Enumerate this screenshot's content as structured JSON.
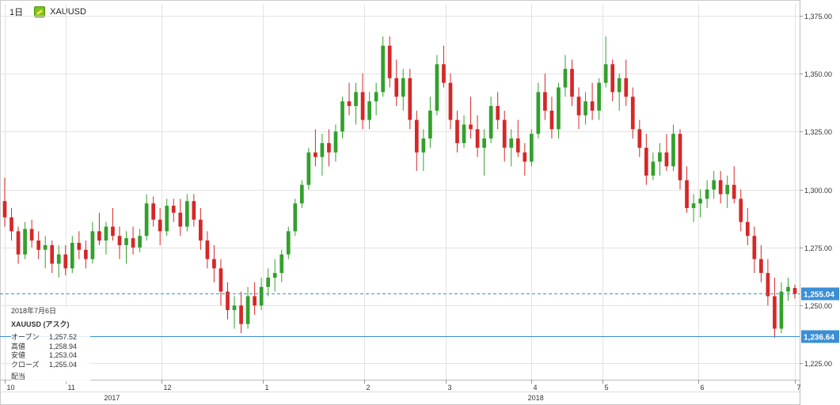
{
  "header": {
    "timeframe": "1日",
    "symbol": "XAUUSD"
  },
  "info_panel": {
    "date": "2018年7月6日",
    "title": "XAUUSD (アスク)",
    "rows": [
      {
        "label": "オープン",
        "value": "1,257.52"
      },
      {
        "label": "高値",
        "value": "1,258.94"
      },
      {
        "label": "安値",
        "value": "1,253.04"
      },
      {
        "label": "クローズ",
        "value": "1,255.04"
      }
    ],
    "footer": "配当"
  },
  "colors": {
    "up": "#33a02c",
    "down": "#d62728",
    "grid": "#e3e3e3",
    "line": "#3a8fd6",
    "badge": "#3a8fd6"
  },
  "chart_data": {
    "type": "candlestick",
    "yrange": [
      1218,
      1380
    ],
    "yticks": [
      "1,225.00",
      "1,250.00",
      "1,275.00",
      "1,300.00",
      "1,325.00",
      "1,350.00",
      "1,375.00"
    ],
    "ytick_values": [
      1225,
      1250,
      1275,
      1300,
      1325,
      1350,
      1375
    ],
    "month_labels": [
      "10",
      "11",
      "12",
      "1",
      "2",
      "3",
      "4",
      "5",
      "6",
      "7"
    ],
    "year_labels": [
      "2017",
      "2018"
    ],
    "current_price": "1,255.04",
    "level_price": "1,236.64",
    "current_value": 1255.04,
    "level_value": 1236.64,
    "ohlc": [
      [
        1295,
        1305,
        1284,
        1288
      ],
      [
        1288,
        1292,
        1278,
        1282
      ],
      [
        1282,
        1284,
        1268,
        1272
      ],
      [
        1272,
        1286,
        1270,
        1283
      ],
      [
        1283,
        1287,
        1275,
        1278
      ],
      [
        1278,
        1282,
        1270,
        1274
      ],
      [
        1274,
        1280,
        1266,
        1276
      ],
      [
        1276,
        1278,
        1264,
        1268
      ],
      [
        1268,
        1276,
        1262,
        1272
      ],
      [
        1272,
        1276,
        1263,
        1266
      ],
      [
        1266,
        1280,
        1264,
        1277
      ],
      [
        1277,
        1282,
        1270,
        1274
      ],
      [
        1274,
        1278,
        1266,
        1270
      ],
      [
        1270,
        1286,
        1268,
        1282
      ],
      [
        1282,
        1290,
        1276,
        1278
      ],
      [
        1278,
        1286,
        1272,
        1284
      ],
      [
        1284,
        1292,
        1278,
        1280
      ],
      [
        1280,
        1284,
        1270,
        1276
      ],
      [
        1276,
        1282,
        1268,
        1279
      ],
      [
        1279,
        1284,
        1272,
        1275
      ],
      [
        1275,
        1283,
        1273,
        1280
      ],
      [
        1280,
        1298,
        1278,
        1294
      ],
      [
        1294,
        1297,
        1284,
        1287
      ],
      [
        1287,
        1292,
        1276,
        1282
      ],
      [
        1282,
        1296,
        1280,
        1293
      ],
      [
        1293,
        1296,
        1286,
        1290
      ],
      [
        1290,
        1296,
        1280,
        1284
      ],
      [
        1284,
        1298,
        1282,
        1295
      ],
      [
        1295,
        1298,
        1284,
        1287
      ],
      [
        1287,
        1292,
        1274,
        1278
      ],
      [
        1278,
        1282,
        1266,
        1270
      ],
      [
        1270,
        1276,
        1260,
        1266
      ],
      [
        1266,
        1270,
        1250,
        1256
      ],
      [
        1256,
        1260,
        1244,
        1248
      ],
      [
        1248,
        1254,
        1240,
        1250
      ],
      [
        1250,
        1256,
        1238,
        1242
      ],
      [
        1242,
        1258,
        1240,
        1254
      ],
      [
        1254,
        1260,
        1246,
        1250
      ],
      [
        1250,
        1262,
        1248,
        1258
      ],
      [
        1258,
        1266,
        1254,
        1262
      ],
      [
        1262,
        1270,
        1256,
        1264
      ],
      [
        1264,
        1274,
        1260,
        1272
      ],
      [
        1272,
        1284,
        1270,
        1282
      ],
      [
        1282,
        1296,
        1280,
        1294
      ],
      [
        1294,
        1304,
        1292,
        1302
      ],
      [
        1302,
        1318,
        1300,
        1316
      ],
      [
        1316,
        1326,
        1310,
        1314
      ],
      [
        1314,
        1324,
        1306,
        1320
      ],
      [
        1320,
        1326,
        1310,
        1316
      ],
      [
        1316,
        1328,
        1312,
        1325
      ],
      [
        1325,
        1340,
        1322,
        1338
      ],
      [
        1338,
        1346,
        1332,
        1336
      ],
      [
        1336,
        1346,
        1328,
        1342
      ],
      [
        1342,
        1350,
        1326,
        1330
      ],
      [
        1330,
        1342,
        1326,
        1338
      ],
      [
        1338,
        1346,
        1332,
        1342
      ],
      [
        1342,
        1366,
        1340,
        1362
      ],
      [
        1362,
        1366,
        1344,
        1348
      ],
      [
        1348,
        1356,
        1336,
        1340
      ],
      [
        1340,
        1352,
        1334,
        1348
      ],
      [
        1348,
        1352,
        1326,
        1330
      ],
      [
        1330,
        1334,
        1308,
        1316
      ],
      [
        1316,
        1326,
        1308,
        1322
      ],
      [
        1322,
        1340,
        1318,
        1334
      ],
      [
        1334,
        1358,
        1332,
        1354
      ],
      [
        1354,
        1362,
        1344,
        1346
      ],
      [
        1346,
        1350,
        1326,
        1330
      ],
      [
        1330,
        1334,
        1316,
        1320
      ],
      [
        1320,
        1332,
        1318,
        1328
      ],
      [
        1328,
        1340,
        1322,
        1326
      ],
      [
        1326,
        1332,
        1314,
        1318
      ],
      [
        1318,
        1326,
        1306,
        1322
      ],
      [
        1322,
        1340,
        1320,
        1336
      ],
      [
        1336,
        1342,
        1326,
        1330
      ],
      [
        1330,
        1334,
        1312,
        1318
      ],
      [
        1318,
        1326,
        1310,
        1322
      ],
      [
        1322,
        1330,
        1314,
        1316
      ],
      [
        1316,
        1320,
        1306,
        1312
      ],
      [
        1312,
        1326,
        1310,
        1324
      ],
      [
        1324,
        1346,
        1322,
        1342
      ],
      [
        1342,
        1350,
        1330,
        1334
      ],
      [
        1334,
        1340,
        1322,
        1326
      ],
      [
        1326,
        1346,
        1322,
        1344
      ],
      [
        1344,
        1358,
        1340,
        1352
      ],
      [
        1352,
        1356,
        1336,
        1340
      ],
      [
        1340,
        1344,
        1326,
        1332
      ],
      [
        1332,
        1342,
        1328,
        1338
      ],
      [
        1338,
        1346,
        1330,
        1334
      ],
      [
        1334,
        1348,
        1330,
        1346
      ],
      [
        1346,
        1366,
        1344,
        1354
      ],
      [
        1354,
        1356,
        1338,
        1342
      ],
      [
        1342,
        1350,
        1334,
        1348
      ],
      [
        1348,
        1356,
        1336,
        1340
      ],
      [
        1340,
        1344,
        1322,
        1326
      ],
      [
        1326,
        1330,
        1314,
        1318
      ],
      [
        1318,
        1324,
        1302,
        1306
      ],
      [
        1306,
        1316,
        1304,
        1312
      ],
      [
        1312,
        1320,
        1306,
        1316
      ],
      [
        1316,
        1324,
        1308,
        1310
      ],
      [
        1310,
        1328,
        1308,
        1324
      ],
      [
        1324,
        1326,
        1300,
        1304
      ],
      [
        1304,
        1310,
        1290,
        1292
      ],
      [
        1292,
        1298,
        1286,
        1294
      ],
      [
        1294,
        1300,
        1288,
        1296
      ],
      [
        1296,
        1304,
        1292,
        1300
      ],
      [
        1300,
        1308,
        1296,
        1304
      ],
      [
        1304,
        1308,
        1294,
        1298
      ],
      [
        1298,
        1306,
        1292,
        1302
      ],
      [
        1302,
        1310,
        1294,
        1296
      ],
      [
        1296,
        1300,
        1282,
        1286
      ],
      [
        1286,
        1292,
        1276,
        1280
      ],
      [
        1280,
        1284,
        1264,
        1270
      ],
      [
        1270,
        1276,
        1260,
        1264
      ],
      [
        1264,
        1270,
        1250,
        1254
      ],
      [
        1254,
        1262,
        1236,
        1240
      ],
      [
        1240,
        1260,
        1238,
        1256
      ],
      [
        1256,
        1262,
        1252,
        1258
      ],
      [
        1257.52,
        1258.94,
        1253.04,
        1255.04
      ]
    ]
  }
}
